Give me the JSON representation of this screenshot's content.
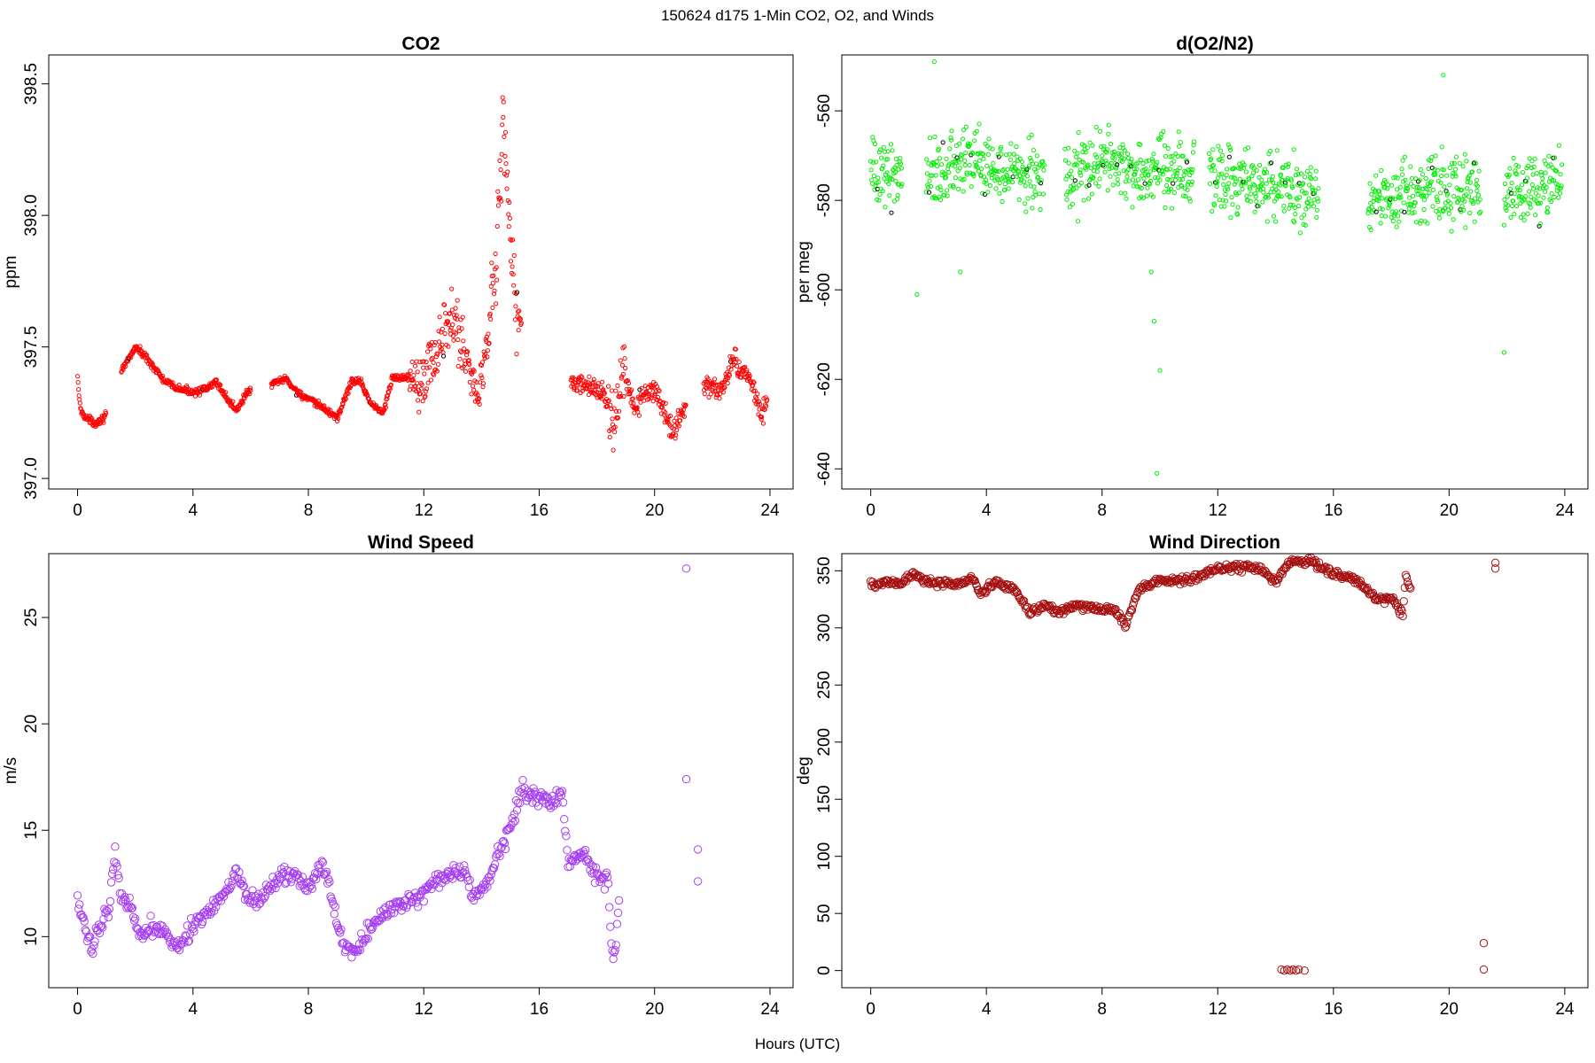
{
  "figure": {
    "suptitle": "150624   d175   1-Min CO2, O2, and Winds",
    "xlabel": "Hours (UTC)"
  },
  "chart_data": [
    {
      "type": "scatter",
      "title": "CO2",
      "ylabel": "ppm",
      "xlim": [
        -1,
        24.8
      ],
      "ylim": [
        396.96,
        398.61
      ],
      "xticks": [
        0,
        4,
        8,
        12,
        16,
        20,
        24
      ],
      "yticks": [
        397.0,
        397.5,
        398.0,
        398.5
      ],
      "yticklabels": [
        "397.0",
        "397.5",
        "398.0",
        "398.5"
      ],
      "color": "#ff0000",
      "marker_size": "small",
      "anchors": [
        [
          0.0,
          397.38
        ],
        [
          0.1,
          397.26
        ],
        [
          0.3,
          397.23
        ],
        [
          0.6,
          397.21
        ],
        [
          0.9,
          397.23
        ],
        [
          1.6,
          397.42
        ],
        [
          2.0,
          397.5
        ],
        [
          2.3,
          397.47
        ],
        [
          2.6,
          397.43
        ],
        [
          3.0,
          397.37
        ],
        [
          3.5,
          397.34
        ],
        [
          4.0,
          397.33
        ],
        [
          4.5,
          397.34
        ],
        [
          4.8,
          397.37
        ],
        [
          5.2,
          397.3
        ],
        [
          5.5,
          397.26
        ],
        [
          5.9,
          397.33
        ],
        [
          6.8,
          397.36
        ],
        [
          7.2,
          397.38
        ],
        [
          7.6,
          397.33
        ],
        [
          8.0,
          397.3
        ],
        [
          8.5,
          397.27
        ],
        [
          9.0,
          397.23
        ],
        [
          9.5,
          397.37
        ],
        [
          9.8,
          397.37
        ],
        [
          10.2,
          397.28
        ],
        [
          10.6,
          397.25
        ],
        [
          10.9,
          397.38
        ],
        [
          11.7,
          397.39
        ],
        [
          12.2,
          397.42
        ],
        [
          12.7,
          397.55
        ],
        [
          13.1,
          397.6
        ],
        [
          13.5,
          397.45
        ],
        [
          13.9,
          397.3
        ],
        [
          14.2,
          397.55
        ],
        [
          14.5,
          397.8
        ],
        [
          14.75,
          398.4
        ],
        [
          15.0,
          397.9
        ],
        [
          15.2,
          397.62
        ],
        [
          17.2,
          397.36
        ],
        [
          17.7,
          397.35
        ],
        [
          18.2,
          397.33
        ],
        [
          18.6,
          397.2
        ],
        [
          18.9,
          397.4
        ],
        [
          19.3,
          397.27
        ],
        [
          19.7,
          397.32
        ],
        [
          20.1,
          397.33
        ],
        [
          20.6,
          397.17
        ],
        [
          21.0,
          397.27
        ],
        [
          21.8,
          397.35
        ],
        [
          22.3,
          397.33
        ],
        [
          22.7,
          397.45
        ],
        [
          23.1,
          397.4
        ],
        [
          23.4,
          397.36
        ],
        [
          23.7,
          397.24
        ],
        [
          23.9,
          397.3
        ]
      ],
      "gaps": [
        [
          1.0,
          1.5
        ],
        [
          6.0,
          6.7
        ],
        [
          15.4,
          17.1
        ],
        [
          21.1,
          21.7
        ]
      ],
      "noise": [
        [
          0,
          11.5,
          0.012
        ],
        [
          11.5,
          13.2,
          0.1
        ],
        [
          13.2,
          14.3,
          0.09
        ],
        [
          14.3,
          15.3,
          0.14
        ],
        [
          17,
          18.4,
          0.03
        ],
        [
          18.4,
          19.0,
          0.09
        ],
        [
          19,
          24,
          0.035
        ]
      ],
      "dark_points": 8
    },
    {
      "type": "scatter",
      "title": "d(O2/N2)",
      "ylabel": "per meg",
      "xlim": [
        -1,
        24.8
      ],
      "ylim": [
        -644.5,
        -547.5
      ],
      "xticks": [
        0,
        4,
        8,
        12,
        16,
        20,
        24
      ],
      "yticks": [
        -560,
        -580,
        -600,
        -620,
        -640
      ],
      "yticklabels": [
        "-560",
        "-580",
        "-600",
        "-620",
        "-640"
      ],
      "color": "#00ee00",
      "marker_size": "small",
      "anchors": [
        [
          0.0,
          -574
        ],
        [
          1.0,
          -574
        ],
        [
          2.0,
          -574
        ],
        [
          3.5,
          -571
        ],
        [
          5.0,
          -573
        ],
        [
          6.0,
          -574
        ],
        [
          7.0,
          -575
        ],
        [
          8.0,
          -571
        ],
        [
          9.5,
          -574
        ],
        [
          11.0,
          -574
        ],
        [
          12.0,
          -575
        ],
        [
          13.5,
          -576
        ],
        [
          15.5,
          -579
        ],
        [
          17.3,
          -580
        ],
        [
          19.0,
          -577
        ],
        [
          21.0,
          -577
        ],
        [
          22.0,
          -579
        ],
        [
          23.9,
          -576
        ]
      ],
      "gaps": [
        [
          1.1,
          1.9
        ],
        [
          6.0,
          6.7
        ],
        [
          11.2,
          11.7
        ],
        [
          15.5,
          17.2
        ],
        [
          21.1,
          21.9
        ]
      ],
      "noise": [
        [
          0,
          24,
          6.5
        ]
      ],
      "outliers": [
        [
          1.6,
          -601
        ],
        [
          9.7,
          -596
        ],
        [
          9.8,
          -607
        ],
        [
          10.0,
          -618
        ],
        [
          9.9,
          -641
        ],
        [
          21.9,
          -614
        ],
        [
          2.2,
          -549
        ],
        [
          19.8,
          -552
        ],
        [
          3.1,
          -596
        ]
      ],
      "dark_points": 40
    },
    {
      "type": "scatter",
      "title": "Wind Speed",
      "ylabel": "m/s",
      "xlim": [
        -1,
        24.8
      ],
      "ylim": [
        7.6,
        28.0
      ],
      "xticks": [
        0,
        4,
        8,
        12,
        16,
        20,
        24
      ],
      "yticks": [
        10,
        15,
        20,
        25
      ],
      "yticklabels": [
        "10",
        "15",
        "20",
        "25"
      ],
      "color": "#a63ff2",
      "marker_size": "large",
      "anchors": [
        [
          0.0,
          11.5
        ],
        [
          0.3,
          10.3
        ],
        [
          0.5,
          9.6
        ],
        [
          0.8,
          10.5
        ],
        [
          1.1,
          11.5
        ],
        [
          1.3,
          14.0
        ],
        [
          1.5,
          12.0
        ],
        [
          1.8,
          11.5
        ],
        [
          2.2,
          10.0
        ],
        [
          2.5,
          10.5
        ],
        [
          3.0,
          10.4
        ],
        [
          3.3,
          9.5
        ],
        [
          3.7,
          10.0
        ],
        [
          4.2,
          10.8
        ],
        [
          4.7,
          11.3
        ],
        [
          5.1,
          12.0
        ],
        [
          5.5,
          13.0
        ],
        [
          6.0,
          11.7
        ],
        [
          6.5,
          11.9
        ],
        [
          7.0,
          12.8
        ],
        [
          7.5,
          12.9
        ],
        [
          8.0,
          12.3
        ],
        [
          8.5,
          13.4
        ],
        [
          8.9,
          11.2
        ],
        [
          9.2,
          9.7
        ],
        [
          9.6,
          9.3
        ],
        [
          10.2,
          10.5
        ],
        [
          10.8,
          11.2
        ],
        [
          11.3,
          11.6
        ],
        [
          11.8,
          11.8
        ],
        [
          12.3,
          12.5
        ],
        [
          12.9,
          13.0
        ],
        [
          13.4,
          13.1
        ],
        [
          13.7,
          12.0
        ],
        [
          14.2,
          12.5
        ],
        [
          14.6,
          14.0
        ],
        [
          15.0,
          15.0
        ],
        [
          15.4,
          17.0
        ],
        [
          15.8,
          16.5
        ],
        [
          16.4,
          16.3
        ],
        [
          16.8,
          16.8
        ],
        [
          17.0,
          13.5
        ],
        [
          17.5,
          14.0
        ],
        [
          17.8,
          13.2
        ],
        [
          18.2,
          12.5
        ],
        [
          18.4,
          13.0
        ],
        [
          18.5,
          9.5
        ],
        [
          18.6,
          8.8
        ],
        [
          18.8,
          12.0
        ]
      ],
      "gaps": [
        [
          18.9,
          30
        ]
      ],
      "noise": [
        [
          0,
          19,
          0.35
        ]
      ],
      "outliers": [
        [
          21.1,
          27.3
        ],
        [
          21.1,
          17.4
        ],
        [
          21.5,
          14.1
        ],
        [
          21.5,
          12.6
        ]
      ]
    },
    {
      "type": "scatter",
      "title": "Wind Direction",
      "ylabel": "deg",
      "xlim": [
        -1,
        24.8
      ],
      "ylim": [
        -15,
        365
      ],
      "xticks": [
        0,
        4,
        8,
        12,
        16,
        20,
        24
      ],
      "yticks": [
        0,
        50,
        100,
        150,
        200,
        250,
        300,
        350
      ],
      "yticklabels": [
        "0",
        "50",
        "100",
        "150",
        "200",
        "250",
        "300",
        "350"
      ],
      "color": "#a50f0f",
      "marker_size": "large",
      "anchors": [
        [
          0.0,
          338
        ],
        [
          1.0,
          340
        ],
        [
          1.5,
          347
        ],
        [
          2.0,
          340
        ],
        [
          3.0,
          338
        ],
        [
          3.5,
          344
        ],
        [
          3.8,
          330
        ],
        [
          4.3,
          340
        ],
        [
          5.0,
          333
        ],
        [
          5.5,
          313
        ],
        [
          6.0,
          320
        ],
        [
          6.5,
          313
        ],
        [
          7.0,
          320
        ],
        [
          7.5,
          318
        ],
        [
          8.5,
          315
        ],
        [
          8.8,
          302
        ],
        [
          9.3,
          335
        ],
        [
          10.0,
          342
        ],
        [
          11.0,
          342
        ],
        [
          12.0,
          352
        ],
        [
          13.0,
          353
        ],
        [
          13.5,
          352
        ],
        [
          14.0,
          340
        ],
        [
          14.5,
          358
        ],
        [
          15.3,
          358
        ],
        [
          16.0,
          347
        ],
        [
          16.5,
          346
        ],
        [
          17.0,
          338
        ],
        [
          17.5,
          325
        ],
        [
          18.0,
          325
        ],
        [
          18.4,
          312
        ],
        [
          18.5,
          345
        ],
        [
          18.7,
          330
        ]
      ],
      "gaps": [
        [
          18.8,
          30
        ]
      ],
      "noise": [
        [
          0,
          19,
          3
        ]
      ],
      "outliers": [
        [
          14.2,
          1
        ],
        [
          14.3,
          0
        ],
        [
          14.4,
          1
        ],
        [
          14.5,
          0
        ],
        [
          14.6,
          1
        ],
        [
          14.7,
          0
        ],
        [
          14.8,
          1
        ],
        [
          15.0,
          0
        ],
        [
          21.2,
          24
        ],
        [
          21.2,
          1
        ],
        [
          21.6,
          357
        ],
        [
          21.6,
          352
        ]
      ]
    }
  ]
}
